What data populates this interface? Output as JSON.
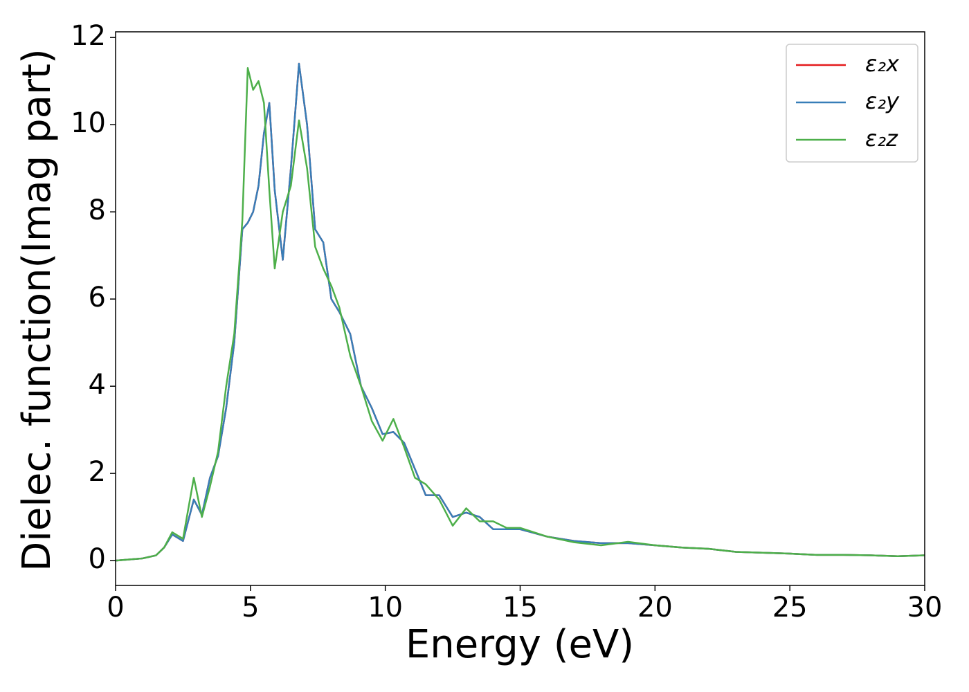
{
  "chart_data": {
    "type": "line",
    "xlabel": "Energy (eV)",
    "ylabel": "Dielec. function(Imag part)",
    "x": [
      0,
      1,
      1.5,
      1.8,
      2.1,
      2.5,
      2.9,
      3.2,
      3.5,
      3.8,
      4.1,
      4.4,
      4.7,
      4.9,
      5.1,
      5.3,
      5.5,
      5.7,
      5.9,
      6.2,
      6.5,
      6.8,
      7.1,
      7.4,
      7.7,
      8.0,
      8.3,
      8.7,
      9.1,
      9.5,
      9.9,
      10.3,
      10.7,
      11.1,
      11.5,
      12.0,
      12.5,
      13.0,
      13.5,
      14.0,
      14.5,
      15.0,
      16,
      17,
      18,
      19,
      20,
      21,
      22,
      23,
      24,
      25,
      26,
      27,
      28,
      29,
      30
    ],
    "series": [
      {
        "name": "ε₂x",
        "color": "#e41a1c",
        "values": [
          0,
          0.05,
          0.12,
          0.3,
          0.6,
          0.45,
          1.4,
          1.05,
          1.9,
          2.4,
          3.5,
          5.0,
          7.6,
          7.75,
          8.0,
          8.6,
          9.8,
          10.5,
          8.5,
          6.9,
          9.0,
          11.4,
          10.0,
          7.6,
          7.3,
          6.0,
          5.7,
          5.2,
          4.0,
          3.5,
          2.9,
          2.95,
          2.7,
          2.1,
          1.5,
          1.5,
          1.0,
          1.1,
          1.0,
          0.72,
          0.72,
          0.72,
          0.55,
          0.45,
          0.4,
          0.4,
          0.35,
          0.3,
          0.27,
          0.2,
          0.18,
          0.16,
          0.13,
          0.13,
          0.12,
          0.1,
          0.12
        ]
      },
      {
        "name": "ε₂y",
        "color": "#377eb8",
        "values": [
          0,
          0.05,
          0.12,
          0.3,
          0.6,
          0.45,
          1.4,
          1.05,
          1.9,
          2.4,
          3.5,
          5.0,
          7.6,
          7.75,
          8.0,
          8.6,
          9.8,
          10.5,
          8.5,
          6.9,
          9.0,
          11.4,
          10.0,
          7.6,
          7.3,
          6.0,
          5.7,
          5.2,
          4.0,
          3.5,
          2.9,
          2.95,
          2.7,
          2.1,
          1.5,
          1.5,
          1.0,
          1.1,
          1.0,
          0.72,
          0.72,
          0.72,
          0.55,
          0.45,
          0.4,
          0.4,
          0.35,
          0.3,
          0.27,
          0.2,
          0.18,
          0.16,
          0.13,
          0.13,
          0.12,
          0.1,
          0.12
        ]
      },
      {
        "name": "ε₂z",
        "color": "#4daf4a",
        "values": [
          0,
          0.05,
          0.12,
          0.3,
          0.65,
          0.5,
          1.9,
          1.0,
          1.7,
          2.5,
          4.0,
          5.2,
          7.8,
          11.3,
          10.8,
          11.0,
          10.5,
          8.5,
          6.7,
          8.0,
          8.6,
          10.1,
          9.0,
          7.2,
          6.7,
          6.3,
          5.8,
          4.7,
          4.0,
          3.2,
          2.75,
          3.25,
          2.6,
          1.9,
          1.75,
          1.4,
          0.8,
          1.2,
          0.9,
          0.9,
          0.75,
          0.75,
          0.55,
          0.42,
          0.35,
          0.43,
          0.35,
          0.3,
          0.27,
          0.2,
          0.18,
          0.16,
          0.13,
          0.13,
          0.12,
          0.1,
          0.12
        ]
      }
    ],
    "xlim": [
      0,
      30
    ],
    "xticks": [
      0,
      5,
      10,
      15,
      20,
      25,
      30
    ],
    "ylim": [
      -0.57,
      12.13
    ],
    "yticks": [
      0,
      2,
      4,
      6,
      8,
      10,
      12
    ],
    "legend": "upper right"
  }
}
